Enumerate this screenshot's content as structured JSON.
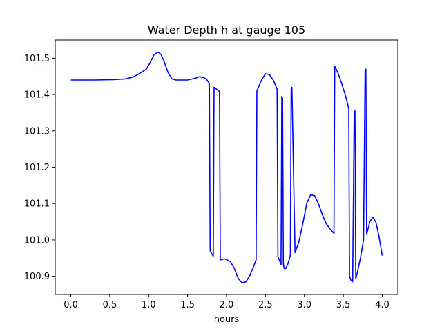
{
  "chart_data": {
    "type": "line",
    "title": "Water Depth h at gauge 105",
    "xlabel": "hours",
    "ylabel": "",
    "xlim": [
      -0.2,
      4.2
    ],
    "ylim": [
      100.85,
      101.55
    ],
    "xticks": [
      0.0,
      0.5,
      1.0,
      1.5,
      2.0,
      2.5,
      3.0,
      3.5,
      4.0
    ],
    "xtick_labels": [
      "0.0",
      "0.5",
      "1.0",
      "1.5",
      "2.0",
      "2.5",
      "3.0",
      "3.5",
      "4.0"
    ],
    "yticks": [
      100.9,
      101.0,
      101.1,
      101.2,
      101.3,
      101.4,
      101.5
    ],
    "ytick_labels": [
      "100.9",
      "101.0",
      "101.1",
      "101.2",
      "101.3",
      "101.4",
      "101.5"
    ],
    "grid": false,
    "series": [
      {
        "color": "#0000ff",
        "x": [
          0.0,
          0.3,
          0.55,
          0.7,
          0.8,
          0.9,
          0.97,
          1.02,
          1.07,
          1.12,
          1.16,
          1.2,
          1.25,
          1.3,
          1.35,
          1.4,
          1.5,
          1.6,
          1.65,
          1.7,
          1.74,
          1.78,
          1.79,
          1.83,
          1.84,
          1.9,
          1.91,
          1.92,
          1.97,
          2.0,
          2.05,
          2.1,
          2.15,
          2.2,
          2.25,
          2.3,
          2.35,
          2.38,
          2.39,
          2.45,
          2.5,
          2.55,
          2.6,
          2.65,
          2.66,
          2.7,
          2.71,
          2.72,
          2.73,
          2.74,
          2.76,
          2.79,
          2.82,
          2.83,
          2.84,
          2.88,
          2.93,
          2.98,
          3.03,
          3.08,
          3.13,
          3.18,
          3.23,
          3.28,
          3.33,
          3.38,
          3.39,
          3.43,
          3.48,
          3.53,
          3.57,
          3.58,
          3.6,
          3.62,
          3.64,
          3.65,
          3.66,
          3.68,
          3.72,
          3.76,
          3.78,
          3.79,
          3.8,
          3.84,
          3.88,
          3.92,
          3.96,
          4.0
        ],
        "y": [
          101.44,
          101.44,
          101.441,
          101.443,
          101.448,
          101.46,
          101.47,
          101.488,
          101.51,
          101.517,
          101.51,
          101.49,
          101.46,
          101.443,
          101.44,
          101.44,
          101.44,
          101.445,
          101.449,
          101.447,
          101.443,
          101.43,
          100.97,
          100.955,
          101.42,
          101.41,
          101.409,
          100.945,
          100.948,
          100.946,
          100.94,
          100.922,
          100.894,
          100.882,
          100.885,
          100.902,
          100.928,
          100.945,
          101.41,
          101.44,
          101.457,
          101.455,
          101.44,
          101.415,
          100.955,
          100.932,
          101.395,
          101.39,
          100.935,
          100.922,
          100.921,
          100.935,
          100.958,
          101.415,
          101.42,
          100.965,
          100.995,
          101.045,
          101.1,
          101.124,
          101.122,
          101.1,
          101.07,
          101.045,
          101.03,
          101.018,
          101.478,
          101.46,
          101.43,
          101.395,
          101.362,
          100.9,
          100.888,
          100.885,
          101.352,
          101.355,
          100.893,
          100.91,
          100.95,
          101.0,
          101.465,
          101.47,
          101.015,
          101.05,
          101.063,
          101.048,
          101.008,
          100.957
        ]
      }
    ]
  }
}
